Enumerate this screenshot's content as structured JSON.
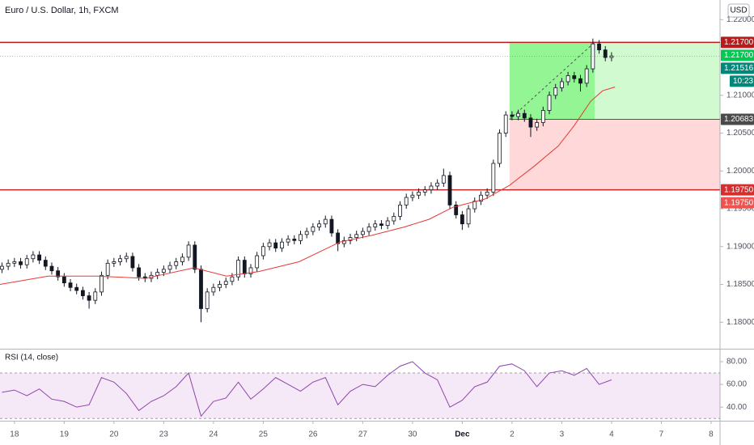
{
  "chart_data": [
    {
      "type": "candlestick",
      "title": "Euro / U.S. Dollar, 1h, FXCM",
      "currency": "USD",
      "color": "#131722",
      "x": [
        -0.25,
        -0.125,
        0,
        0.125,
        0.25,
        0.375,
        0.5,
        0.625,
        0.75,
        0.875,
        1,
        1.125,
        1.25,
        1.375,
        1.5,
        1.625,
        1.75,
        1.875,
        2,
        2.125,
        2.25,
        2.375,
        2.5,
        2.625,
        2.75,
        2.875,
        3,
        3.125,
        3.25,
        3.375,
        3.5,
        3.625,
        3.75,
        3.875,
        4,
        4.125,
        4.25,
        4.375,
        4.5,
        4.625,
        4.75,
        4.875,
        5,
        5.125,
        5.25,
        5.375,
        5.5,
        5.625,
        5.75,
        5.875,
        6,
        6.125,
        6.25,
        6.375,
        6.5,
        6.625,
        6.75,
        6.875,
        7,
        7.125,
        7.25,
        7.375,
        7.5,
        7.625,
        7.75,
        7.875,
        8,
        8.125,
        8.25,
        8.375,
        8.5,
        8.625,
        8.75,
        8.875,
        9,
        9.125,
        9.25,
        9.375,
        9.5,
        9.625,
        9.75,
        9.875,
        10,
        10.125,
        10.25,
        10.375,
        10.5,
        10.625,
        10.75,
        10.875,
        11,
        11.125,
        11.25,
        11.375,
        11.5,
        11.625,
        11.75,
        11.875,
        12
      ],
      "open": [
        1.187,
        1.1874,
        1.1878,
        1.188,
        1.1876,
        1.1884,
        1.1889,
        1.1882,
        1.1874,
        1.1868,
        1.186,
        1.1852,
        1.1846,
        1.1842,
        1.1835,
        1.1829,
        1.184,
        1.1862,
        1.1878,
        1.188,
        1.1884,
        1.1887,
        1.1872,
        1.186,
        1.1858,
        1.1862,
        1.1866,
        1.187,
        1.1875,
        1.188,
        1.1886,
        1.1902,
        1.187,
        1.1818,
        1.184,
        1.1846,
        1.185,
        1.1854,
        1.186,
        1.1882,
        1.1864,
        1.1872,
        1.1888,
        1.19,
        1.1905,
        1.1898,
        1.1906,
        1.191,
        1.1908,
        1.1916,
        1.192,
        1.1926,
        1.193,
        1.1936,
        1.1918,
        1.1904,
        1.1908,
        1.1912,
        1.1916,
        1.192,
        1.1926,
        1.193,
        1.1928,
        1.1934,
        1.194,
        1.1955,
        1.1965,
        1.1968,
        1.1972,
        1.1975,
        1.198,
        1.1984,
        1.1994,
        1.1955,
        1.1942,
        1.193,
        1.195,
        1.196,
        1.1968,
        1.1972,
        1.201,
        1.205,
        1.2074,
        1.2072,
        1.2076,
        1.207,
        1.2058,
        1.2064,
        1.208,
        1.21,
        1.211,
        1.2118,
        1.2126,
        1.2122,
        1.2116,
        1.2135,
        1.2168,
        1.216,
        1.215
      ],
      "high": [
        1.1879,
        1.1883,
        1.1885,
        1.1885,
        1.1889,
        1.1894,
        1.1894,
        1.1887,
        1.1879,
        1.1873,
        1.1865,
        1.1857,
        1.1851,
        1.1847,
        1.184,
        1.1845,
        1.1867,
        1.1883,
        1.1885,
        1.1889,
        1.1892,
        1.1892,
        1.1877,
        1.1865,
        1.1867,
        1.1871,
        1.1875,
        1.188,
        1.1885,
        1.1891,
        1.1907,
        1.1907,
        1.1875,
        1.1845,
        1.1851,
        1.1855,
        1.1859,
        1.1865,
        1.1887,
        1.1887,
        1.1877,
        1.1893,
        1.1905,
        1.191,
        1.191,
        1.1911,
        1.1915,
        1.1915,
        1.1921,
        1.1925,
        1.1931,
        1.1935,
        1.1941,
        1.1941,
        1.1923,
        1.1913,
        1.1917,
        1.1921,
        1.1925,
        1.1931,
        1.1935,
        1.1935,
        1.1939,
        1.1945,
        1.196,
        1.197,
        1.1973,
        1.1977,
        1.198,
        1.1985,
        1.1989,
        1.2003,
        1.1999,
        1.196,
        1.1947,
        1.1955,
        1.1965,
        1.1973,
        1.1977,
        1.2015,
        1.2055,
        1.2079,
        1.2079,
        1.2081,
        1.2081,
        1.2075,
        1.2069,
        1.2085,
        1.2105,
        1.2115,
        1.2123,
        1.2131,
        1.2131,
        1.2127,
        1.214,
        1.2175,
        1.2173,
        1.2165,
        1.2157
      ],
      "low": [
        1.1865,
        1.1869,
        1.1873,
        1.1871,
        1.1871,
        1.1879,
        1.1877,
        1.1869,
        1.1863,
        1.1855,
        1.1847,
        1.1841,
        1.1837,
        1.183,
        1.1818,
        1.1824,
        1.1835,
        1.1857,
        1.1873,
        1.1875,
        1.1879,
        1.1867,
        1.1855,
        1.1853,
        1.1853,
        1.1857,
        1.1861,
        1.1865,
        1.187,
        1.1875,
        1.1881,
        1.1865,
        1.18,
        1.1813,
        1.1835,
        1.1841,
        1.1845,
        1.1849,
        1.1855,
        1.1859,
        1.1859,
        1.1867,
        1.1883,
        1.1895,
        1.1893,
        1.1893,
        1.1901,
        1.1903,
        1.1903,
        1.1911,
        1.1915,
        1.1921,
        1.1925,
        1.1913,
        1.1894,
        1.1899,
        1.1903,
        1.1907,
        1.1911,
        1.1915,
        1.1921,
        1.1923,
        1.1923,
        1.1929,
        1.1935,
        1.195,
        1.196,
        1.1963,
        1.1967,
        1.197,
        1.1975,
        1.1979,
        1.195,
        1.1937,
        1.1922,
        1.1925,
        1.1945,
        1.1955,
        1.1963,
        1.1967,
        1.2005,
        1.2045,
        1.2067,
        1.2067,
        1.2065,
        1.2045,
        1.2053,
        1.2059,
        1.2075,
        1.2095,
        1.2105,
        1.2113,
        1.2117,
        1.2105,
        1.2111,
        1.213,
        1.2155,
        1.2145,
        1.2145
      ],
      "close": [
        1.1874,
        1.1878,
        1.188,
        1.1876,
        1.1884,
        1.1889,
        1.1882,
        1.1874,
        1.1868,
        1.186,
        1.1852,
        1.1846,
        1.1842,
        1.1835,
        1.1829,
        1.184,
        1.1862,
        1.1878,
        1.188,
        1.1884,
        1.1887,
        1.1872,
        1.186,
        1.1858,
        1.1862,
        1.1866,
        1.187,
        1.1875,
        1.188,
        1.1886,
        1.1902,
        1.187,
        1.1818,
        1.184,
        1.1846,
        1.185,
        1.1854,
        1.186,
        1.1882,
        1.1864,
        1.1872,
        1.1888,
        1.19,
        1.1905,
        1.1898,
        1.1906,
        1.191,
        1.1908,
        1.1916,
        1.192,
        1.1926,
        1.193,
        1.1936,
        1.1918,
        1.1904,
        1.1908,
        1.1912,
        1.1916,
        1.192,
        1.1926,
        1.193,
        1.1928,
        1.1934,
        1.194,
        1.1955,
        1.1965,
        1.1968,
        1.1972,
        1.1975,
        1.198,
        1.1984,
        1.1994,
        1.1955,
        1.1942,
        1.193,
        1.195,
        1.196,
        1.1968,
        1.1972,
        1.201,
        1.205,
        1.2074,
        1.2072,
        1.2076,
        1.207,
        1.2058,
        1.2064,
        1.208,
        1.21,
        1.211,
        1.2118,
        1.2126,
        1.2122,
        1.2116,
        1.2135,
        1.2168,
        1.216,
        1.215,
        1.2152
      ],
      "ma": {
        "color": "#e53935",
        "x": [
          -0.29,
          0.68,
          1.66,
          2.63,
          3.61,
          4.26,
          4.91,
          5.72,
          6.54,
          7.19,
          7.84,
          8.33,
          8.81,
          9.46,
          9.95,
          10.44,
          10.93,
          11.25,
          11.58,
          11.82,
          12.07
        ],
        "values": [
          1.185,
          1.1861,
          1.1861,
          1.1858,
          1.1872,
          1.1861,
          1.1867,
          1.188,
          1.1906,
          1.1915,
          1.1926,
          1.1936,
          1.1952,
          1.1963,
          1.1981,
          1.2006,
          1.2033,
          1.206,
          1.2092,
          1.2106,
          1.2111
        ]
      },
      "levels": [
        {
          "value": 1.217,
          "color": "#b71c1c"
        },
        {
          "value": 1.1975,
          "color": "#c62828"
        }
      ],
      "position": {
        "entry": 1.20683,
        "target": 1.217,
        "stop": 1.1975,
        "start": 9.95,
        "end": 11.66
      },
      "price_labels": [
        {
          "value": 1.217,
          "label": "1.21700",
          "color": "#b71c1c"
        },
        {
          "value": 1.217,
          "label": "1.21700",
          "color": "#00c853"
        },
        {
          "value": 1.21516,
          "label": "1.21516",
          "color": "#00897b",
          "sub": "10:23"
        },
        {
          "value": 1.20683,
          "label": "1.20683",
          "color": "#4a4a4a"
        },
        {
          "value": 1.1975,
          "label": "1.19750",
          "color": "#d32f2f"
        },
        {
          "value": 1.1975,
          "label": "1.19750",
          "color": "#ef5350"
        }
      ],
      "xlim": [
        -0.29,
        14.18
      ],
      "ylim": [
        1.1765,
        1.2226
      ],
      "yticks": [
        {
          "value": 1.18,
          "label": "1.18000"
        },
        {
          "value": 1.185,
          "label": "1.18500"
        },
        {
          "value": 1.19,
          "label": "1.19000"
        },
        {
          "value": 1.195,
          "label": "1.19500"
        },
        {
          "value": 1.2,
          "label": "1.20000"
        },
        {
          "value": 1.205,
          "label": "1.20500"
        },
        {
          "value": 1.21,
          "label": "1.21000"
        },
        {
          "value": 1.22,
          "label": "1.22000"
        }
      ]
    },
    {
      "type": "line",
      "title": "RSI (14, close)",
      "color": "#8e44ad",
      "x": [
        -0.25,
        0,
        0.25,
        0.5,
        0.75,
        1,
        1.25,
        1.5,
        1.75,
        2,
        2.25,
        2.5,
        2.75,
        3,
        3.25,
        3.5,
        3.75,
        4,
        4.25,
        4.5,
        4.75,
        5,
        5.25,
        5.5,
        5.75,
        6,
        6.25,
        6.5,
        6.75,
        7,
        7.25,
        7.5,
        7.75,
        8,
        8.25,
        8.5,
        8.75,
        9,
        9.25,
        9.5,
        9.75,
        10,
        10.25,
        10.5,
        10.75,
        11,
        11.25,
        11.5,
        11.75,
        12
      ],
      "values": [
        53,
        55,
        50,
        56,
        47,
        45,
        40,
        42,
        66,
        62,
        52,
        37,
        45,
        50,
        58,
        70,
        32,
        45,
        48,
        62,
        47,
        56,
        66,
        60,
        54,
        62,
        66,
        42,
        54,
        60,
        58,
        68,
        76,
        80,
        70,
        64,
        40,
        46,
        58,
        62,
        76,
        78,
        72,
        58,
        70,
        72,
        68,
        74,
        60,
        64
      ],
      "bands": [
        70,
        30
      ],
      "xlim": [
        -0.29,
        14.18
      ],
      "ylim": [
        28,
        90.7
      ],
      "yticks": [
        {
          "value": 80,
          "label": "80.00"
        },
        {
          "value": 60,
          "label": "60.00"
        },
        {
          "value": 40,
          "label": "40.00"
        }
      ],
      "xticks": [
        {
          "value": 0,
          "label": "18"
        },
        {
          "value": 1,
          "label": "19"
        },
        {
          "value": 2,
          "label": "20"
        },
        {
          "value": 3,
          "label": "23"
        },
        {
          "value": 4,
          "label": "24"
        },
        {
          "value": 5,
          "label": "25"
        },
        {
          "value": 6,
          "label": "26"
        },
        {
          "value": 7,
          "label": "27"
        },
        {
          "value": 8,
          "label": "30"
        },
        {
          "value": 9,
          "label": "Dec"
        },
        {
          "value": 10,
          "label": "2"
        },
        {
          "value": 11,
          "label": "3"
        },
        {
          "value": 12,
          "label": "4"
        },
        {
          "value": 13,
          "label": "7"
        },
        {
          "value": 14,
          "label": "8"
        }
      ]
    }
  ]
}
